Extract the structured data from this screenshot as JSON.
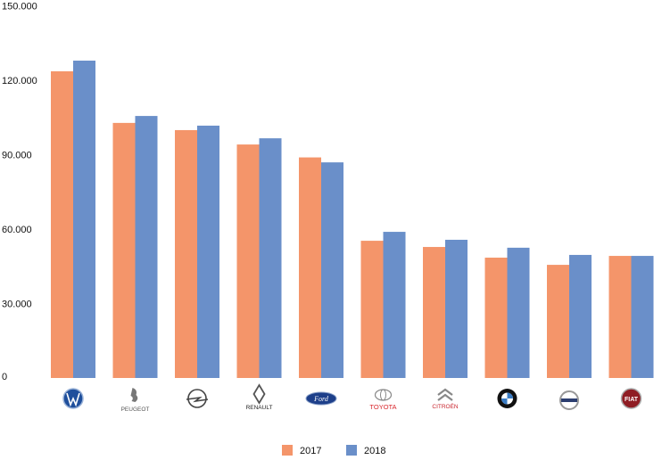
{
  "chart_data": {
    "type": "bar",
    "title": "",
    "xlabel": "",
    "ylabel": "",
    "ylim": [
      0,
      150000
    ],
    "yticks": [
      "0",
      "30.000",
      "60.000",
      "90.000",
      "120.000",
      "150.000"
    ],
    "ytick_values": [
      0,
      30000,
      60000,
      90000,
      120000,
      150000
    ],
    "grid": false,
    "categories": [
      "Volkswagen",
      "PEUGEOT",
      "Opel",
      "RENAULT",
      "Ford",
      "TOYOTA",
      "CITROËN",
      "BMW",
      "VOLVO",
      "FIAT"
    ],
    "series": [
      {
        "name": "2017",
        "color": "#f4956a",
        "values": [
          123600,
          102800,
          99900,
          94100,
          88900,
          55300,
          52800,
          48500,
          45600,
          49200
        ]
      },
      {
        "name": "2018",
        "color": "#6a8fc9",
        "values": [
          127900,
          105600,
          101700,
          96600,
          86900,
          58900,
          55700,
          52500,
          49600,
          49200
        ]
      }
    ],
    "legend": "bottom"
  }
}
